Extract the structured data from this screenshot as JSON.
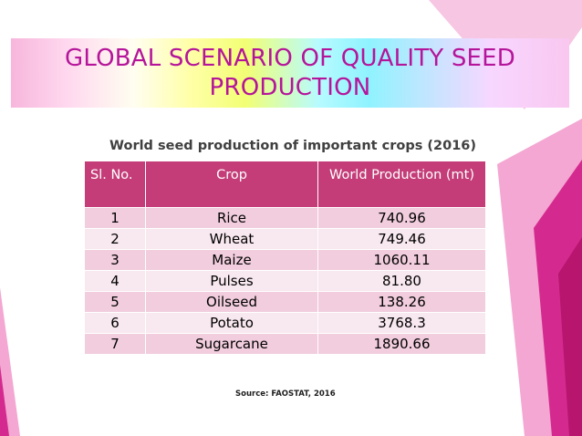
{
  "slide": {
    "title": "GLOBAL SCENARIO OF QUALITY SEED PRODUCTION",
    "subtitle": "World seed production of important crops (2016)",
    "source": "Source: FAOSTAT, 2016",
    "colors": {
      "title": "#b5159a",
      "header_bg": "#c43d78",
      "row_odd": "#f1cddd",
      "row_even": "#f8e8ef",
      "accent_magenta": "#d42a8f"
    }
  },
  "table": {
    "headers": [
      "Sl. No.",
      "Crop",
      "World Production (mt)"
    ],
    "rows": [
      [
        "1",
        "Rice",
        "740.96"
      ],
      [
        "2",
        "Wheat",
        "749.46"
      ],
      [
        "3",
        "Maize",
        "1060.11"
      ],
      [
        "4",
        "Pulses",
        "81.80"
      ],
      [
        "5",
        "Oilseed",
        "138.26"
      ],
      [
        "6",
        "Potato",
        "3768.3"
      ],
      [
        "7",
        "Sugarcane",
        "1890.66"
      ]
    ]
  }
}
